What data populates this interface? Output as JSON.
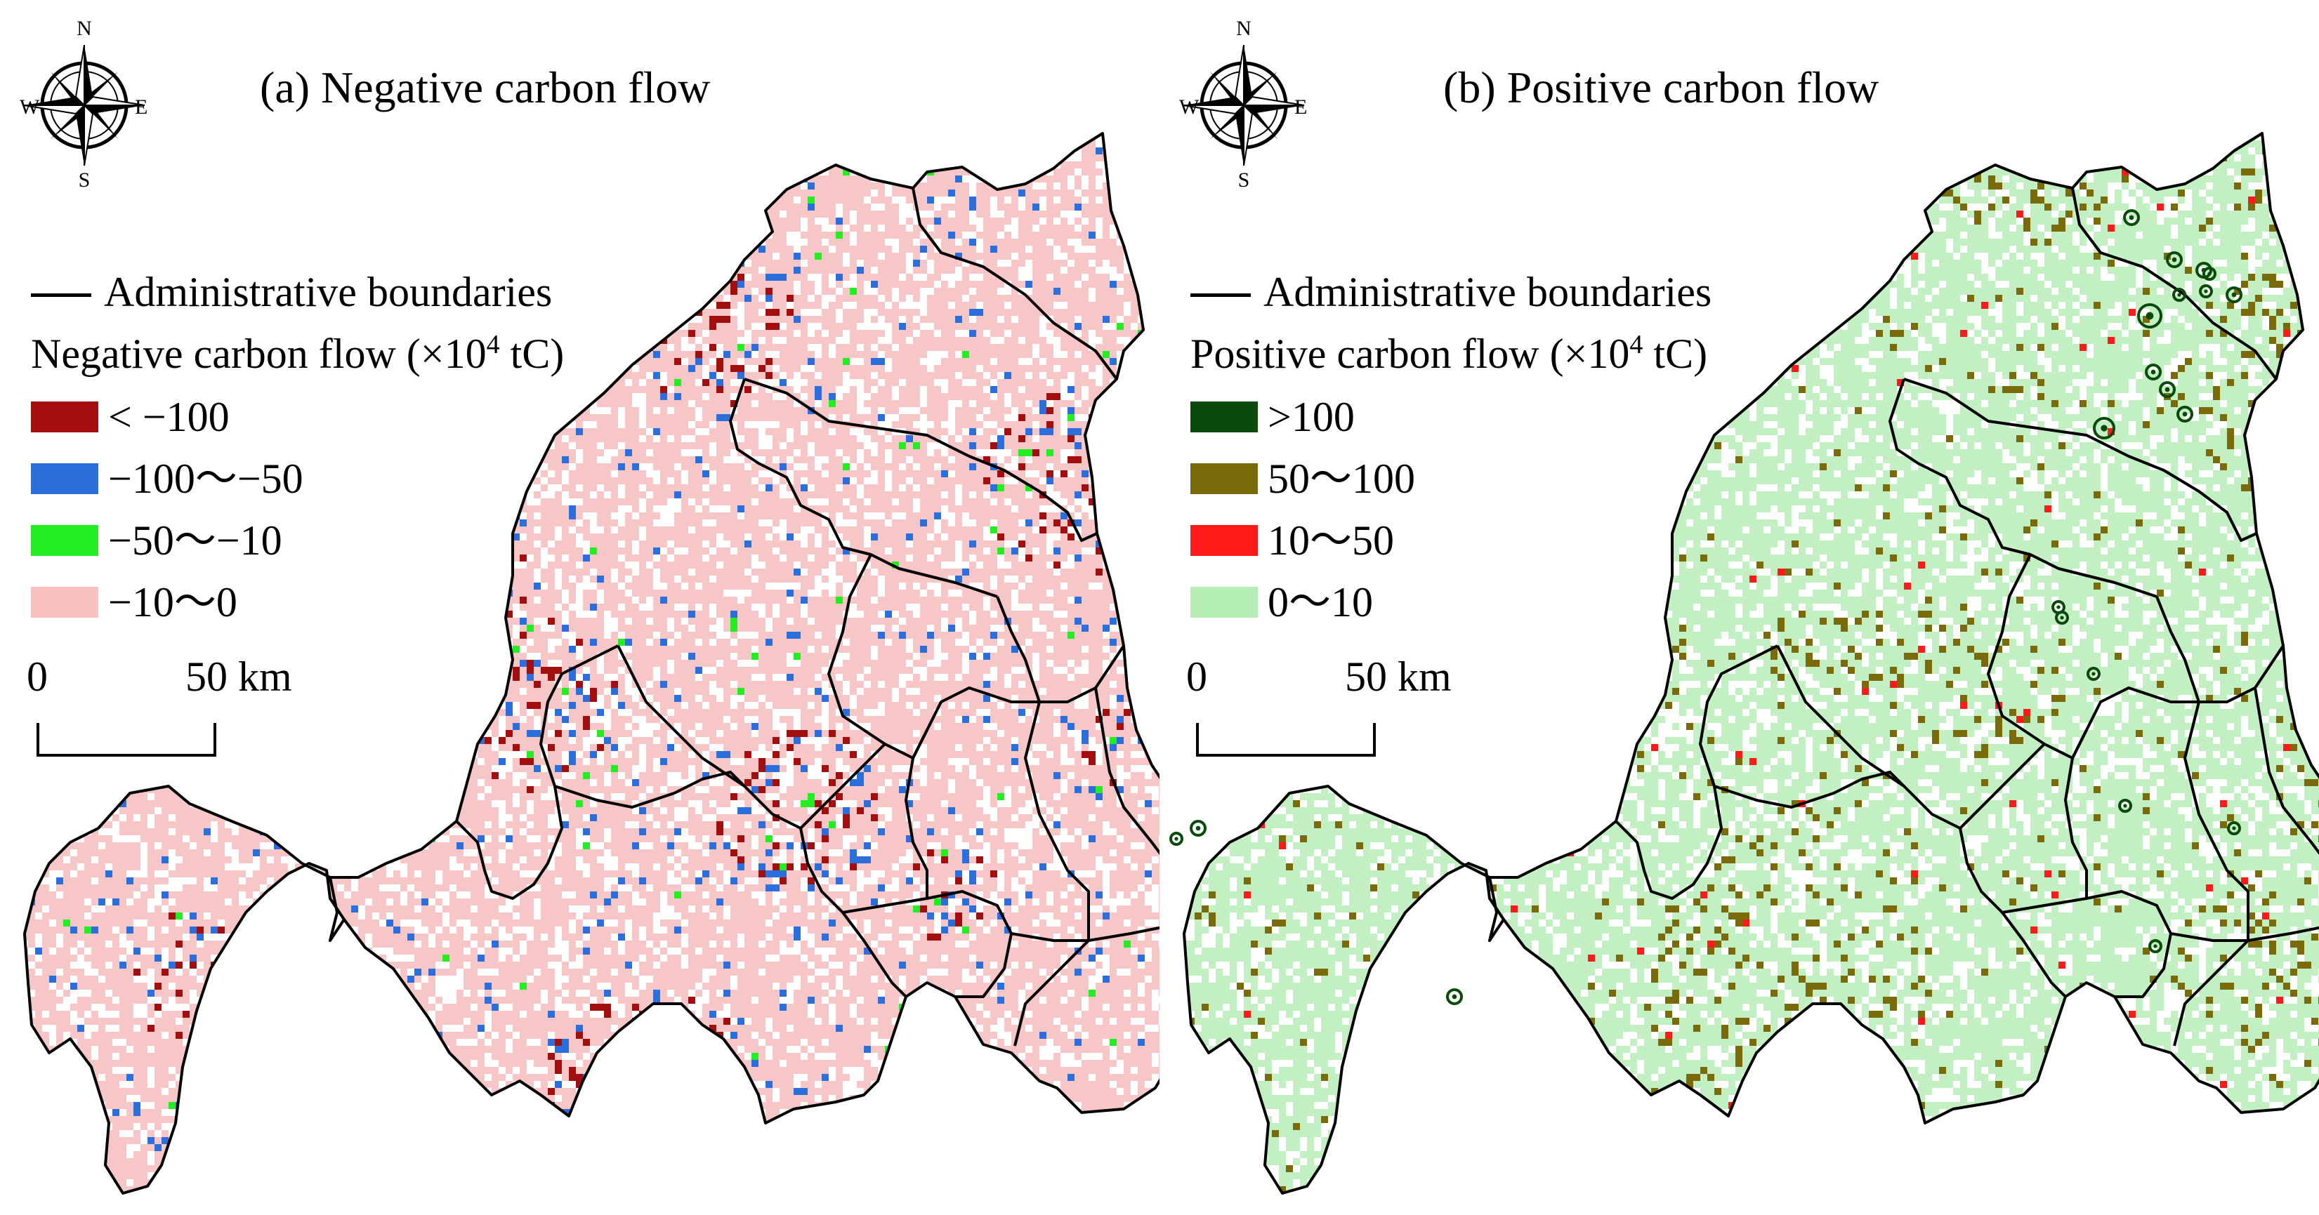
{
  "panels": [
    {
      "id": "a",
      "title": "(a) Negative carbon flow",
      "legend": {
        "boundary_label": "Administrative boundaries",
        "heading": "Negative carbon flow (×10",
        "heading_sup": "4",
        "heading_tail": " tC)",
        "classes": [
          {
            "label": "< −100",
            "color": "#a30f0f"
          },
          {
            "label": "−100～−50",
            "color": "#2a6fdc"
          },
          {
            "label": "−50～−10",
            "color": "#22ee22"
          },
          {
            "label": "−10～0",
            "color": "#f7c1c1"
          }
        ]
      },
      "base_color": "#f7c6c6",
      "scalebar": {
        "start": "0",
        "end": "50 km"
      }
    },
    {
      "id": "b",
      "title": "(b) Positive carbon flow",
      "legend": {
        "boundary_label": "Administrative boundaries",
        "heading": "Positive carbon flow (×10",
        "heading_sup": "4",
        "heading_tail": " tC)",
        "classes": [
          {
            "label": ">100",
            "color": "#0a4a0a"
          },
          {
            "label": "50～100",
            "color": "#7a6a0a"
          },
          {
            "label": "10～50",
            "color": "#ff1a1a"
          },
          {
            "label": "0～10",
            "color": "#b4eeb4"
          }
        ]
      },
      "base_color": "#c3f0c3",
      "scalebar": {
        "start": "0",
        "end": "50 km"
      }
    }
  ],
  "compass": {
    "n": "N",
    "s": "S",
    "e": "E",
    "w": "W"
  }
}
